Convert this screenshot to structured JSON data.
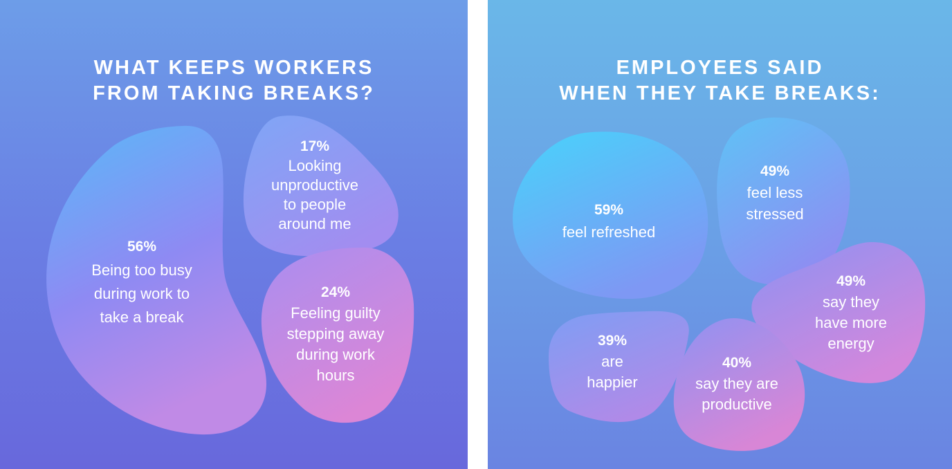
{
  "panels": [
    {
      "title_lines": [
        "WHAT KEEPS WORKERS",
        "FROM TAKING BREAKS?"
      ],
      "items": [
        {
          "percent": "56%",
          "lines": [
            "Being too busy",
            "during work to",
            "take a break"
          ]
        },
        {
          "percent": "17%",
          "lines": [
            "Looking",
            "unproductive",
            "to people",
            "around me"
          ]
        },
        {
          "percent": "24%",
          "lines": [
            "Feeling guilty",
            "stepping away",
            "during work",
            "hours"
          ]
        }
      ]
    },
    {
      "title_lines": [
        "EMPLOYEES SAID",
        "WHEN THEY TAKE BREAKS:"
      ],
      "items": [
        {
          "percent": "59%",
          "lines": [
            "feel refreshed"
          ]
        },
        {
          "percent": "49%",
          "lines": [
            "feel less",
            "stressed"
          ]
        },
        {
          "percent": "49%",
          "lines": [
            "say they",
            "have more",
            "energy"
          ]
        },
        {
          "percent": "39%",
          "lines": [
            "are",
            "happier"
          ]
        },
        {
          "percent": "40%",
          "lines": [
            "say they are",
            "productive"
          ]
        }
      ]
    }
  ],
  "colors": {
    "blob_top": "#5ab9f8",
    "blob_mid": "#8f8cf3",
    "blob_bottom": "#d486d8",
    "text": "#ffffff"
  }
}
